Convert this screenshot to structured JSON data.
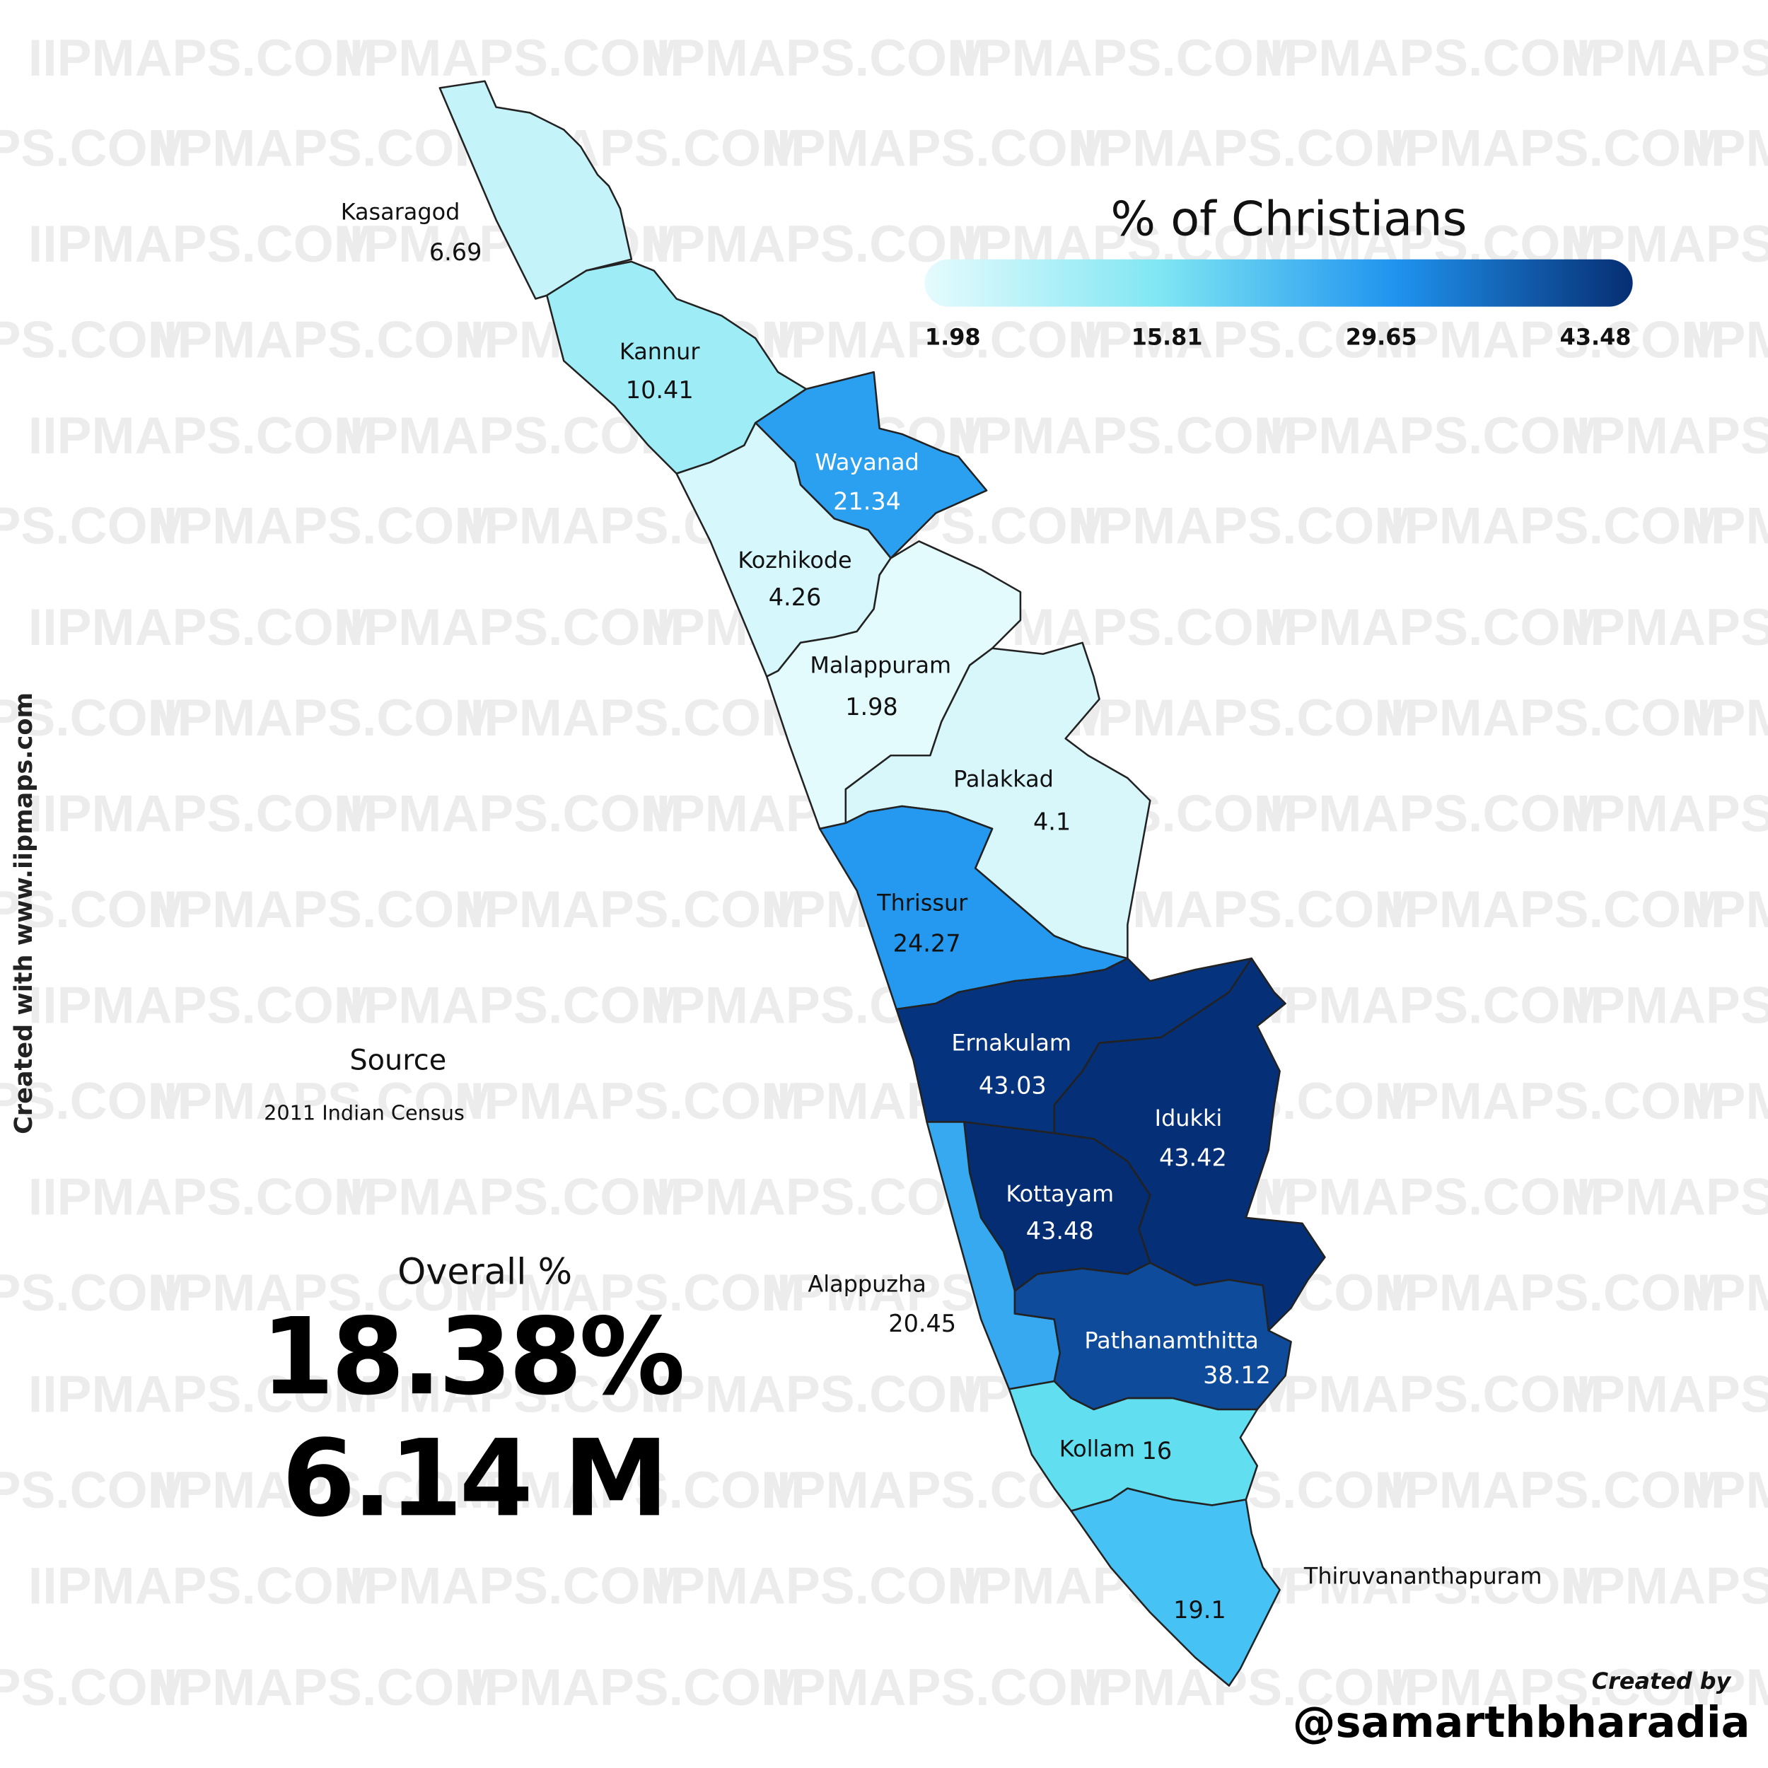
{
  "watermark": "IIPMAPS.COM",
  "side_credit": "Created with www.iipmaps.com",
  "legend": {
    "title": "% of Christians",
    "ticks": [
      1.98,
      15.81,
      29.65,
      43.48
    ],
    "colors": [
      "#e6fbfd",
      "#7fe6f3",
      "#1f93ef",
      "#062e72"
    ]
  },
  "districts": [
    {
      "name": "Kasaragod",
      "value": 6.69,
      "color": "#c4f3fa"
    },
    {
      "name": "Kannur",
      "value": 10.41,
      "color": "#9eedf6"
    },
    {
      "name": "Wayanad",
      "value": 21.34,
      "color": "#2b9ff0"
    },
    {
      "name": "Kozhikode",
      "value": 4.26,
      "color": "#d6f7fb"
    },
    {
      "name": "Malappuram",
      "value": 1.98,
      "color": "#e3fbfd"
    },
    {
      "name": "Palakkad",
      "value": 4.1,
      "color": "#d8f7fb"
    },
    {
      "name": "Thrissur",
      "value": 24.27,
      "color": "#2499ef"
    },
    {
      "name": "Ernakulam",
      "value": 43.03,
      "color": "#06337d"
    },
    {
      "name": "Idukki",
      "value": 43.42,
      "color": "#052f77"
    },
    {
      "name": "Kottayam",
      "value": 43.48,
      "color": "#042d73"
    },
    {
      "name": "Alappuzha",
      "value": 20.45,
      "color": "#37a9f1"
    },
    {
      "name": "Pathanamthitta",
      "value": 38.12,
      "color": "#0f4b9b"
    },
    {
      "name": "Kollam",
      "value": 16,
      "color": "#62def1"
    },
    {
      "name": "Thiruvananthapuram",
      "value": 19.1,
      "color": "#46c3f4"
    }
  ],
  "source": {
    "label": "Source",
    "text": "2011 Indian Census"
  },
  "overall": {
    "label": "Overall %",
    "percent": "18.38%",
    "population": "6.14 M"
  },
  "credit": {
    "label": "Created by",
    "handle": "@samarthbharadia"
  }
}
